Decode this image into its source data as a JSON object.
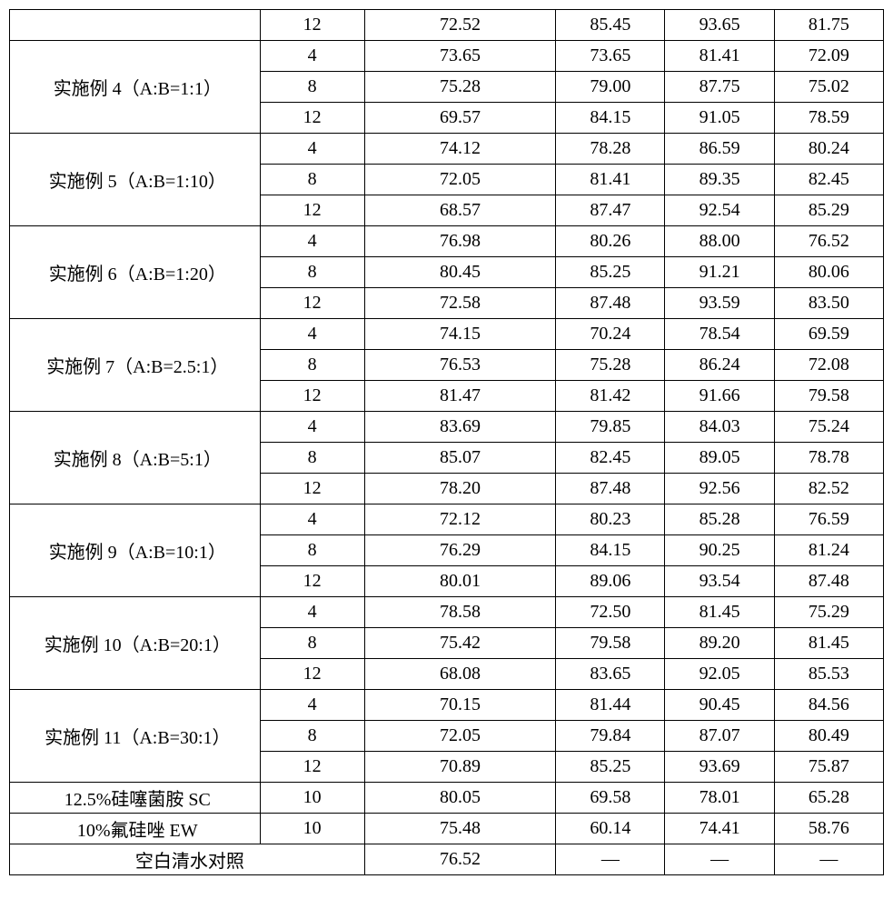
{
  "groups": [
    {
      "label": "",
      "rows": [
        {
          "cols": [
            "12",
            "72.52",
            "85.45",
            "93.65",
            "81.75"
          ]
        }
      ]
    },
    {
      "label": "实施例 4（A:B=1:1）",
      "rows": [
        {
          "cols": [
            "4",
            "73.65",
            "73.65",
            "81.41",
            "72.09"
          ]
        },
        {
          "cols": [
            "8",
            "75.28",
            "79.00",
            "87.75",
            "75.02"
          ]
        },
        {
          "cols": [
            "12",
            "69.57",
            "84.15",
            "91.05",
            "78.59"
          ]
        }
      ]
    },
    {
      "label": "实施例 5（A:B=1:10）",
      "rows": [
        {
          "cols": [
            "4",
            "74.12",
            "78.28",
            "86.59",
            "80.24"
          ]
        },
        {
          "cols": [
            "8",
            "72.05",
            "81.41",
            "89.35",
            "82.45"
          ]
        },
        {
          "cols": [
            "12",
            "68.57",
            "87.47",
            "92.54",
            "85.29"
          ]
        }
      ]
    },
    {
      "label": "实施例 6（A:B=1:20）",
      "rows": [
        {
          "cols": [
            "4",
            "76.98",
            "80.26",
            "88.00",
            "76.52"
          ]
        },
        {
          "cols": [
            "8",
            "80.45",
            "85.25",
            "91.21",
            "80.06"
          ]
        },
        {
          "cols": [
            "12",
            "72.58",
            "87.48",
            "93.59",
            "83.50"
          ]
        }
      ]
    },
    {
      "label": "实施例 7（A:B=2.5:1）",
      "rows": [
        {
          "cols": [
            "4",
            "74.15",
            "70.24",
            "78.54",
            "69.59"
          ]
        },
        {
          "cols": [
            "8",
            "76.53",
            "75.28",
            "86.24",
            "72.08"
          ]
        },
        {
          "cols": [
            "12",
            "81.47",
            "81.42",
            "91.66",
            "79.58"
          ]
        }
      ]
    },
    {
      "label": "实施例 8（A:B=5:1）",
      "rows": [
        {
          "cols": [
            "4",
            "83.69",
            "79.85",
            "84.03",
            "75.24"
          ]
        },
        {
          "cols": [
            "8",
            "85.07",
            "82.45",
            "89.05",
            "78.78"
          ]
        },
        {
          "cols": [
            "12",
            "78.20",
            "87.48",
            "92.56",
            "82.52"
          ]
        }
      ]
    },
    {
      "label": "实施例 9（A:B=10:1）",
      "rows": [
        {
          "cols": [
            "4",
            "72.12",
            "80.23",
            "85.28",
            "76.59"
          ]
        },
        {
          "cols": [
            "8",
            "76.29",
            "84.15",
            "90.25",
            "81.24"
          ]
        },
        {
          "cols": [
            "12",
            "80.01",
            "89.06",
            "93.54",
            "87.48"
          ]
        }
      ]
    },
    {
      "label": "实施例 10（A:B=20:1）",
      "rows": [
        {
          "cols": [
            "4",
            "78.58",
            "72.50",
            "81.45",
            "75.29"
          ]
        },
        {
          "cols": [
            "8",
            "75.42",
            "79.58",
            "89.20",
            "81.45"
          ]
        },
        {
          "cols": [
            "12",
            "68.08",
            "83.65",
            "92.05",
            "85.53"
          ]
        }
      ]
    },
    {
      "label": "实施例 11（A:B=30:1）",
      "rows": [
        {
          "cols": [
            "4",
            "70.15",
            "81.44",
            "90.45",
            "84.56"
          ]
        },
        {
          "cols": [
            "8",
            "72.05",
            "79.84",
            "87.07",
            "80.49"
          ]
        },
        {
          "cols": [
            "12",
            "70.89",
            "85.25",
            "93.69",
            "75.87"
          ]
        }
      ]
    }
  ],
  "singles": [
    {
      "label": "12.5%硅噻菌胺 SC",
      "cols": [
        "10",
        "80.05",
        "69.58",
        "78.01",
        "65.28"
      ]
    },
    {
      "label": "10%氟硅唑 EW",
      "cols": [
        "10",
        "75.48",
        "60.14",
        "74.41",
        "58.76"
      ]
    }
  ],
  "blank": {
    "label": "空白清水对照",
    "cols": [
      "76.52",
      "—",
      "—",
      "—"
    ]
  }
}
